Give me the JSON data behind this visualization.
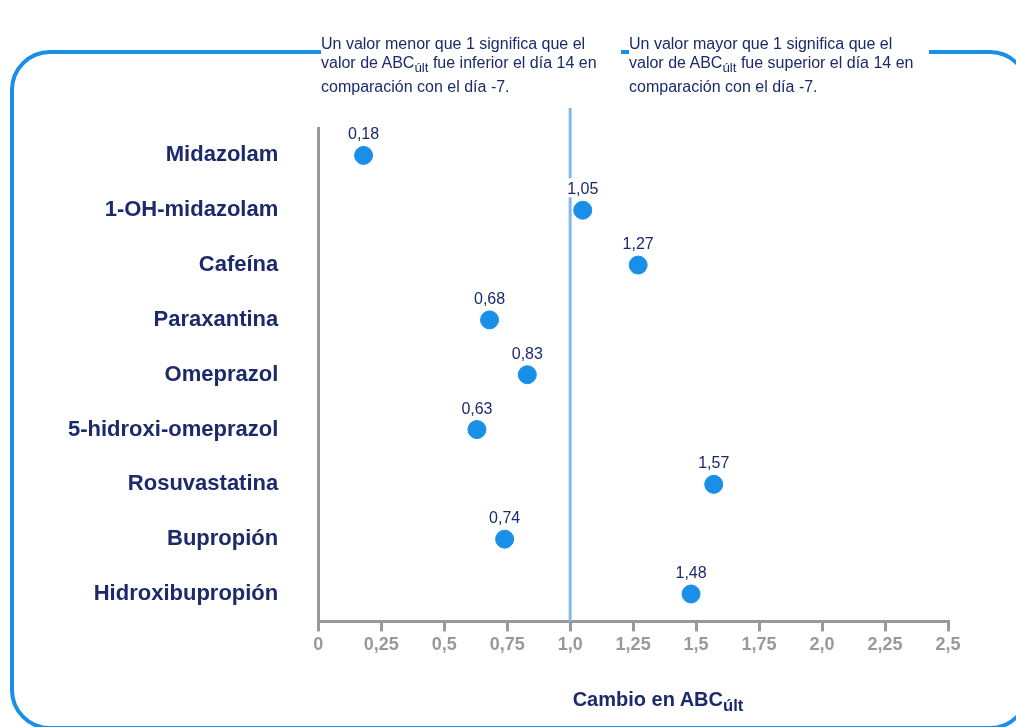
{
  "chart_data": {
    "type": "scatter",
    "orientation": "horizontal",
    "categories": [
      "Midazolam",
      "1-OH-midazolam",
      "Cafeína",
      "Paraxantina",
      "Omeprazol",
      "5-hidroxi-omeprazol",
      "Rosuvastatina",
      "Bupropión",
      "Hidroxibupropión"
    ],
    "values": [
      0.18,
      1.05,
      1.27,
      0.68,
      0.83,
      0.63,
      1.57,
      0.74,
      1.48
    ],
    "value_labels": [
      "0,18",
      "1,05",
      "1,27",
      "0,68",
      "0,83",
      "0,63",
      "1,57",
      "0,74",
      "1,48"
    ],
    "color": "#1a8fe8",
    "marker": "circle",
    "grid": false,
    "legend": false,
    "xlabel": "Cambio en ABC$_{últ}$",
    "xlim": [
      0,
      2.5
    ],
    "xticks": [
      0,
      {
        "value": 0.25,
        "label": "0,25"
      },
      {
        "value": 0.5,
        "label": "0,5"
      },
      {
        "value": 0.75,
        "label": "0,75"
      },
      {
        "value": 1,
        "label": "1,0"
      },
      {
        "value": 1.25,
        "label": "1,25"
      },
      {
        "value": 1.5,
        "label": "1,5"
      },
      {
        "value": 1.75,
        "label": "1,75"
      },
      {
        "value": 2,
        "label": "2,0"
      },
      {
        "value": 2.25,
        "label": "2,25"
      },
      {
        "value": 2.5,
        "label": "2,5"
      }
    ],
    "ref_lines": [
      {
        "axis": "x",
        "value": 1,
        "color": "#7fbbe6"
      }
    ],
    "annotations": [
      "Un valor menor que 1 significa que el valor de ABC$_{últ}$ fue inferior el día 14 en comparación con el día -7.",
      "Un valor mayor que 1 significa que el valor de ABC$_{últ}$ fue superior el día 14 en comparación con el día -7."
    ]
  }
}
